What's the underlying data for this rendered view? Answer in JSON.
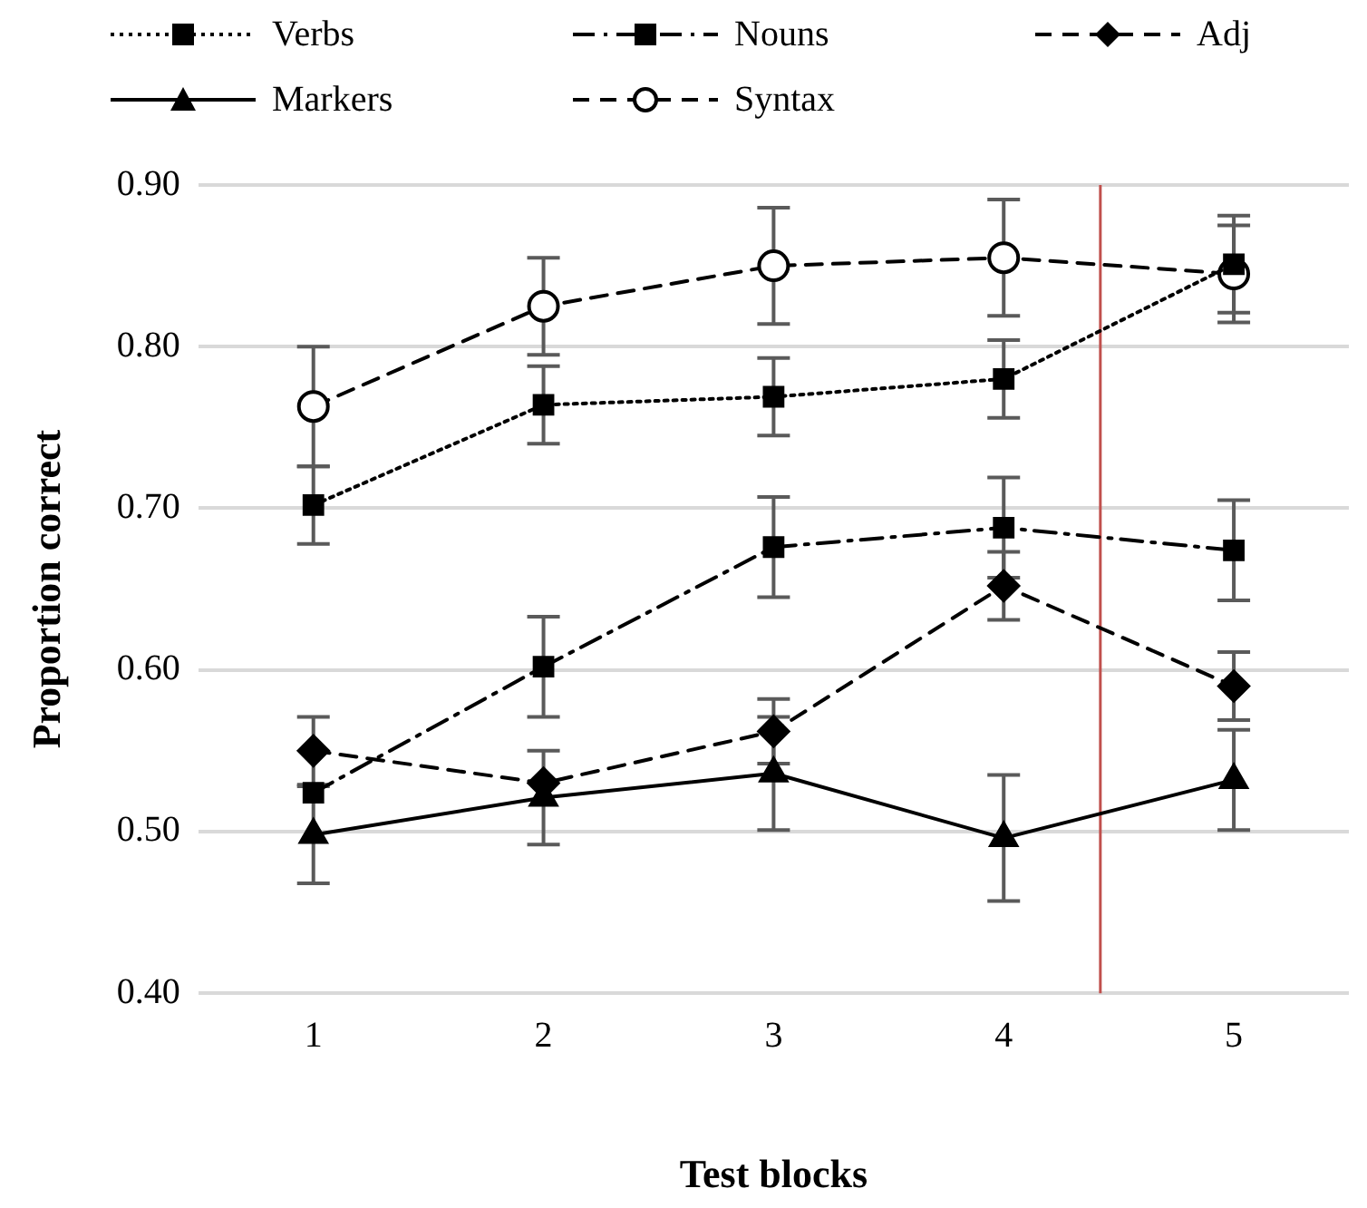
{
  "chart_data": {
    "type": "line",
    "xlabel": "Test blocks",
    "ylabel": "Proportion correct",
    "x": [
      1,
      2,
      3,
      4,
      5
    ],
    "xlim": [
      0.5,
      5.5
    ],
    "xticks": [
      1,
      2,
      3,
      4,
      5
    ],
    "ylim": [
      0.4,
      0.9
    ],
    "yticks": [
      {
        "value": 0.4,
        "label": "0.40"
      },
      {
        "value": 0.5,
        "label": "0.50"
      },
      {
        "value": 0.6,
        "label": "0.60"
      },
      {
        "value": 0.7,
        "label": "0.70"
      },
      {
        "value": 0.8,
        "label": "0.80"
      },
      {
        "value": 0.9,
        "label": "0.90"
      }
    ],
    "grid": "y",
    "legend": "top",
    "ref_lines": [
      {
        "axis": "x",
        "value": 4.42,
        "color": "#c0504d"
      }
    ],
    "series": [
      {
        "name": "Verbs",
        "color": "#000000",
        "marker": "square",
        "line_style": "dotted",
        "values": [
          0.702,
          0.764,
          0.769,
          0.78,
          0.851
        ],
        "errors": [
          0.024,
          0.024,
          0.024,
          0.024,
          0.03
        ]
      },
      {
        "name": "Nouns",
        "color": "#000000",
        "marker": "square",
        "line_style": "dashdot",
        "values": [
          0.524,
          0.602,
          0.676,
          0.688,
          0.674
        ],
        "errors": [
          null,
          0.031,
          0.031,
          0.031,
          0.031
        ]
      },
      {
        "name": "Adj",
        "color": "#000000",
        "marker": "diamond",
        "line_style": "dashed",
        "values": [
          0.55,
          0.53,
          0.562,
          0.652,
          0.59
        ],
        "errors": [
          0.021,
          null,
          0.02,
          0.021,
          0.021
        ]
      },
      {
        "name": "Markers",
        "color": "#000000",
        "marker": "triangle",
        "line_style": "solid",
        "values": [
          0.498,
          0.521,
          0.536,
          0.496,
          0.532
        ],
        "errors": [
          0.03,
          0.029,
          0.035,
          0.039,
          0.031
        ]
      },
      {
        "name": "Syntax",
        "color": "#000000",
        "marker": "circle",
        "line_style": "dashed",
        "values": [
          0.763,
          0.825,
          0.85,
          0.855,
          0.845
        ],
        "errors": [
          0.037,
          0.03,
          0.036,
          0.036,
          0.03
        ]
      }
    ]
  }
}
